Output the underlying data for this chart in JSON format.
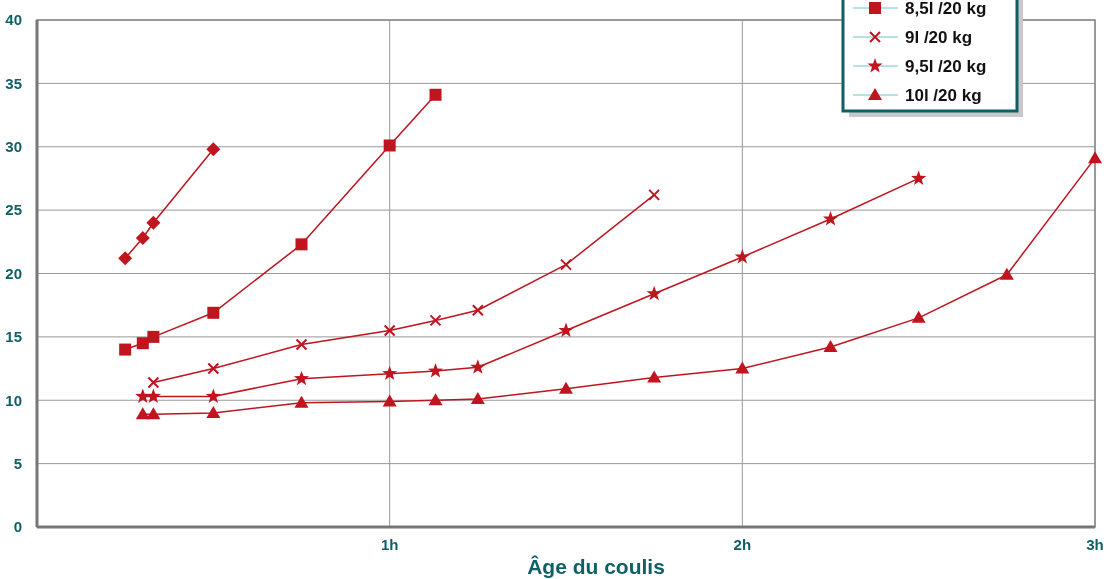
{
  "chart_data": {
    "type": "line",
    "xlabel": "Âge du coulis",
    "xlim": [
      0,
      3
    ],
    "xticks": [
      {
        "value": 1,
        "label": "1h"
      },
      {
        "value": 2,
        "label": "2h"
      },
      {
        "value": 3,
        "label": "3h"
      }
    ],
    "ylim": [
      0,
      40
    ],
    "yticks": [
      0,
      5,
      10,
      15,
      20,
      25,
      30,
      35,
      40
    ],
    "grid": true,
    "legend": "top right",
    "line_style": "solid",
    "series": [
      {
        "color": "#c0141f",
        "marker": "diamond",
        "x": [
          0.25,
          0.3,
          0.33,
          0.5
        ],
        "values": [
          21.2,
          22.8,
          24.0,
          29.8
        ]
      },
      {
        "name": "8,5l /20 kg",
        "color": "#c0141f",
        "marker": "square",
        "x": [
          0.25,
          0.3,
          0.33,
          0.5,
          0.75,
          1,
          1.13
        ],
        "values": [
          14.0,
          14.5,
          15.0,
          16.9,
          22.3,
          30.1,
          34.1
        ]
      },
      {
        "name": "9l /20 kg",
        "color": "#c0141f",
        "marker": "cross",
        "x": [
          0.33,
          0.5,
          0.75,
          1,
          1.13,
          1.25,
          1.5,
          1.75
        ],
        "values": [
          11.4,
          12.5,
          14.4,
          15.5,
          16.3,
          17.1,
          20.7,
          26.2
        ]
      },
      {
        "name": "9,5l /20 kg",
        "color": "#c0141f",
        "marker": "star",
        "x": [
          0.3,
          0.33,
          0.5,
          0.75,
          1,
          1.13,
          1.25,
          1.5,
          1.75,
          2,
          2.25,
          2.5
        ],
        "values": [
          10.3,
          10.3,
          10.3,
          11.7,
          12.1,
          12.3,
          12.6,
          15.5,
          18.4,
          21.3,
          24.3,
          27.5
        ]
      },
      {
        "name": "10l /20 kg",
        "color": "#c0141f",
        "marker": "triangle",
        "x": [
          0.3,
          0.33,
          0.5,
          0.75,
          1,
          1.13,
          1.25,
          1.5,
          1.75,
          2,
          2.25,
          2.5,
          2.75,
          3
        ],
        "values": [
          8.9,
          8.9,
          9.0,
          9.8,
          9.9,
          10.0,
          10.1,
          10.9,
          11.8,
          12.5,
          14.2,
          16.5,
          19.9,
          29.1
        ]
      }
    ]
  }
}
